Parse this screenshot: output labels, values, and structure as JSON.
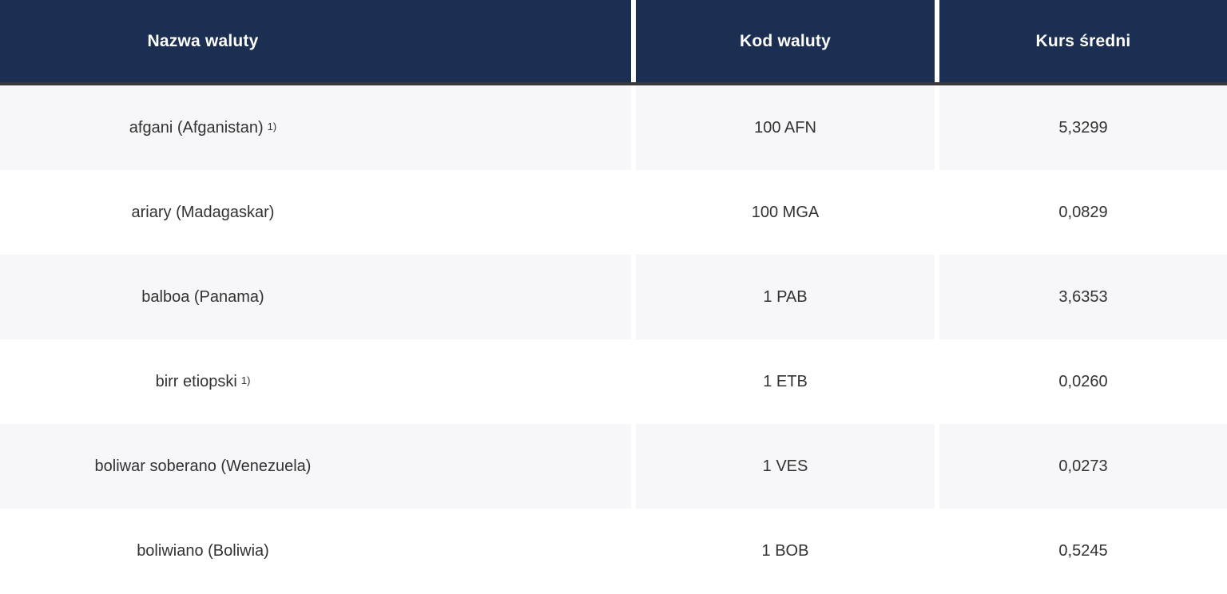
{
  "table": {
    "columns": [
      {
        "label": "Nazwa waluty"
      },
      {
        "label": "Kod waluty"
      },
      {
        "label": "Kurs średni"
      }
    ],
    "rows": [
      {
        "name": "afgani (Afganistan)",
        "footnote": "1)",
        "code": "100 AFN",
        "rate": "5,3299"
      },
      {
        "name": "ariary (Madagaskar)",
        "footnote": "",
        "code": "100 MGA",
        "rate": "0,0829"
      },
      {
        "name": "balboa (Panama)",
        "footnote": "",
        "code": "1 PAB",
        "rate": "3,6353"
      },
      {
        "name": "birr etiopski",
        "footnote": "1)",
        "code": "1 ETB",
        "rate": "0,0260"
      },
      {
        "name": "boliwar soberano (Wenezuela)",
        "footnote": "",
        "code": "1 VES",
        "rate": "0,0273"
      },
      {
        "name": "boliwiano (Boliwia)",
        "footnote": "",
        "code": "1 BOB",
        "rate": "0,5245"
      }
    ]
  },
  "colors": {
    "header_bg": "#1a2f52",
    "header_border": "#37393b",
    "header_text": "#ffffff",
    "row_alt_bg": "#f7f6f8",
    "row_bg": "#ffffff",
    "body_text": "#323232",
    "column_gap": "#ffffff"
  }
}
